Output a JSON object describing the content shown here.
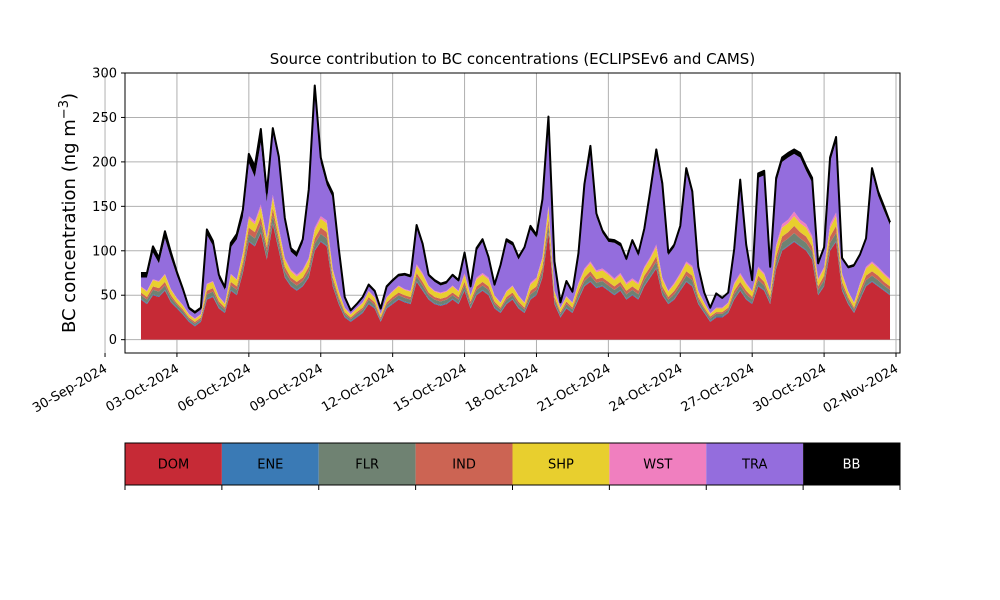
{
  "chart_data": {
    "type": "area",
    "title": "Source contribution to BC concentrations (ECLIPSEv6 and CAMS)",
    "ylabel": "BC concentration (ng m",
    "ylabel_sup": "−3",
    "ylabel_close": ")",
    "xlabel": "",
    "ylim": [
      -15,
      300
    ],
    "xlim": [
      "2024-09-30T20:00",
      "2024-11-02T04:00"
    ],
    "yticks": [
      0,
      50,
      100,
      150,
      200,
      250,
      300
    ],
    "xticks": [
      {
        "date": "2024-09-30",
        "label": "30-Sep-2024"
      },
      {
        "date": "2024-10-03",
        "label": "03-Oct-2024"
      },
      {
        "date": "2024-10-06",
        "label": "06-Oct-2024"
      },
      {
        "date": "2024-10-09",
        "label": "09-Oct-2024"
      },
      {
        "date": "2024-10-12",
        "label": "12-Oct-2024"
      },
      {
        "date": "2024-10-15",
        "label": "15-Oct-2024"
      },
      {
        "date": "2024-10-18",
        "label": "18-Oct-2024"
      },
      {
        "date": "2024-10-21",
        "label": "21-Oct-2024"
      },
      {
        "date": "2024-10-24",
        "label": "24-Oct-2024"
      },
      {
        "date": "2024-10-27",
        "label": "27-Oct-2024"
      },
      {
        "date": "2024-10-30",
        "label": "30-Oct-2024"
      },
      {
        "date": "2024-11-02",
        "label": "02-Nov-2024"
      }
    ],
    "grid": true,
    "stacked": true,
    "series_order": [
      "DOM",
      "ENE",
      "FLR",
      "IND",
      "SHP",
      "WST",
      "TRA",
      "BB"
    ],
    "colors": {
      "DOM": "#c62a36",
      "ENE": "#3a7ab5",
      "FLR": "#6f8272",
      "IND": "#cc6453",
      "SHP": "#e8cf2e",
      "WST": "#f07fbf",
      "TRA": "#946ddd",
      "BB": "#000000",
      "total_line": "#000000",
      "grid": "#b0b0b0"
    },
    "x": [
      "2024-10-01T12:00",
      "2024-10-01T18:00",
      "2024-10-02T00:00",
      "2024-10-02T06:00",
      "2024-10-02T12:00",
      "2024-10-02T18:00",
      "2024-10-03T00:00",
      "2024-10-03T06:00",
      "2024-10-03T12:00",
      "2024-10-03T18:00",
      "2024-10-04T00:00",
      "2024-10-04T06:00",
      "2024-10-04T12:00",
      "2024-10-04T18:00",
      "2024-10-05T00:00",
      "2024-10-05T06:00",
      "2024-10-05T12:00",
      "2024-10-05T18:00",
      "2024-10-06T00:00",
      "2024-10-06T06:00",
      "2024-10-06T12:00",
      "2024-10-06T18:00",
      "2024-10-07T00:00",
      "2024-10-07T06:00",
      "2024-10-07T12:00",
      "2024-10-07T18:00",
      "2024-10-08T00:00",
      "2024-10-08T06:00",
      "2024-10-08T12:00",
      "2024-10-08T18:00",
      "2024-10-09T00:00",
      "2024-10-09T06:00",
      "2024-10-09T12:00",
      "2024-10-09T18:00",
      "2024-10-10T00:00",
      "2024-10-10T06:00",
      "2024-10-10T12:00",
      "2024-10-10T18:00",
      "2024-10-11T00:00",
      "2024-10-11T06:00",
      "2024-10-11T12:00",
      "2024-10-11T18:00",
      "2024-10-12T00:00",
      "2024-10-12T06:00",
      "2024-10-12T12:00",
      "2024-10-12T18:00",
      "2024-10-13T00:00",
      "2024-10-13T06:00",
      "2024-10-13T12:00",
      "2024-10-13T18:00",
      "2024-10-14T00:00",
      "2024-10-14T06:00",
      "2024-10-14T12:00",
      "2024-10-14T18:00",
      "2024-10-15T00:00",
      "2024-10-15T06:00",
      "2024-10-15T12:00",
      "2024-10-15T18:00",
      "2024-10-16T00:00",
      "2024-10-16T06:00",
      "2024-10-16T12:00",
      "2024-10-16T18:00",
      "2024-10-17T00:00",
      "2024-10-17T06:00",
      "2024-10-17T12:00",
      "2024-10-17T18:00",
      "2024-10-18T00:00",
      "2024-10-18T06:00",
      "2024-10-18T12:00",
      "2024-10-18T18:00",
      "2024-10-19T00:00",
      "2024-10-19T06:00",
      "2024-10-19T12:00",
      "2024-10-19T18:00",
      "2024-10-20T00:00",
      "2024-10-20T06:00",
      "2024-10-20T12:00",
      "2024-10-20T18:00",
      "2024-10-21T00:00",
      "2024-10-21T06:00",
      "2024-10-21T12:00",
      "2024-10-21T18:00",
      "2024-10-22T00:00",
      "2024-10-22T06:00",
      "2024-10-22T12:00",
      "2024-10-22T18:00",
      "2024-10-23T00:00",
      "2024-10-23T06:00",
      "2024-10-23T12:00",
      "2024-10-23T18:00",
      "2024-10-24T00:00",
      "2024-10-24T06:00",
      "2024-10-24T12:00",
      "2024-10-24T18:00",
      "2024-10-25T00:00",
      "2024-10-25T06:00",
      "2024-10-25T12:00",
      "2024-10-25T18:00",
      "2024-10-26T00:00",
      "2024-10-26T06:00",
      "2024-10-26T12:00",
      "2024-10-26T18:00",
      "2024-10-27T00:00",
      "2024-10-27T06:00",
      "2024-10-27T12:00",
      "2024-10-27T18:00",
      "2024-10-28T00:00",
      "2024-10-28T06:00",
      "2024-10-28T12:00",
      "2024-10-28T18:00",
      "2024-10-29T00:00",
      "2024-10-29T06:00",
      "2024-10-29T12:00",
      "2024-10-29T18:00",
      "2024-10-30T00:00",
      "2024-10-30T06:00",
      "2024-10-30T12:00",
      "2024-10-30T18:00",
      "2024-10-31T00:00",
      "2024-10-31T06:00",
      "2024-10-31T12:00",
      "2024-10-31T18:00",
      "2024-11-01T00:00",
      "2024-11-01T06:00",
      "2024-11-01T12:00",
      "2024-11-01T18:00"
    ],
    "series": [
      {
        "name": "DOM",
        "values": [
          45,
          40,
          50,
          48,
          55,
          42,
          35,
          28,
          20,
          15,
          20,
          45,
          48,
          35,
          30,
          55,
          50,
          75,
          110,
          105,
          120,
          90,
          130,
          100,
          70,
          60,
          55,
          60,
          70,
          100,
          110,
          105,
          60,
          40,
          25,
          20,
          25,
          30,
          40,
          35,
          20,
          35,
          40,
          45,
          42,
          40,
          65,
          55,
          45,
          40,
          38,
          40,
          45,
          40,
          55,
          35,
          50,
          55,
          50,
          35,
          30,
          40,
          45,
          35,
          30,
          45,
          50,
          70,
          120,
          40,
          25,
          35,
          30,
          45,
          60,
          65,
          58,
          60,
          55,
          50,
          55,
          45,
          50,
          45,
          60,
          70,
          80,
          50,
          40,
          45,
          55,
          65,
          60,
          40,
          30,
          20,
          25,
          25,
          30,
          45,
          55,
          45,
          40,
          60,
          55,
          40,
          80,
          100,
          105,
          110,
          105,
          100,
          90,
          50,
          60,
          100,
          110,
          55,
          40,
          30,
          45,
          60,
          65,
          60,
          55,
          50
        ]
      },
      {
        "name": "ENE",
        "values": [
          1,
          1,
          1,
          1,
          1,
          1,
          1,
          1,
          1,
          1,
          1,
          1,
          1,
          1,
          1,
          1,
          1,
          1,
          1,
          1,
          1,
          1,
          1,
          1,
          1,
          1,
          1,
          1,
          1,
          1,
          1,
          1,
          1,
          1,
          1,
          1,
          1,
          1,
          1,
          1,
          1,
          1,
          1,
          1,
          1,
          1,
          1,
          1,
          1,
          1,
          1,
          1,
          1,
          1,
          1,
          1,
          1,
          1,
          1,
          1,
          1,
          1,
          1,
          1,
          1,
          1,
          1,
          1,
          1,
          1,
          1,
          1,
          1,
          1,
          1,
          1,
          1,
          1,
          1,
          1,
          1,
          1,
          1,
          1,
          1,
          1,
          1,
          1,
          1,
          1,
          1,
          1,
          1,
          1,
          1,
          1,
          1,
          1,
          1,
          1,
          1,
          1,
          1,
          1,
          1,
          1,
          1,
          1,
          1,
          1,
          1,
          1,
          1,
          1,
          1,
          1,
          1,
          1,
          1,
          1,
          1,
          1,
          1,
          1,
          1,
          1
        ]
      },
      {
        "name": "FLR",
        "values": [
          4,
          4,
          5,
          5,
          5,
          4,
          3,
          3,
          2,
          2,
          2,
          5,
          5,
          4,
          3,
          5,
          5,
          6,
          8,
          8,
          9,
          7,
          9,
          7,
          6,
          5,
          5,
          5,
          6,
          7,
          8,
          8,
          5,
          4,
          3,
          2,
          3,
          3,
          4,
          3,
          2,
          3,
          4,
          4,
          4,
          4,
          5,
          5,
          4,
          4,
          4,
          4,
          4,
          4,
          5,
          4,
          5,
          5,
          5,
          4,
          3,
          4,
          4,
          4,
          3,
          5,
          5,
          6,
          8,
          4,
          3,
          4,
          3,
          5,
          5,
          6,
          5,
          5,
          5,
          5,
          5,
          5,
          5,
          5,
          6,
          6,
          7,
          5,
          4,
          5,
          5,
          6,
          6,
          4,
          3,
          3,
          3,
          3,
          3,
          5,
          5,
          5,
          4,
          6,
          5,
          4,
          7,
          8,
          8,
          9,
          8,
          8,
          8,
          5,
          6,
          8,
          9,
          5,
          4,
          3,
          5,
          6,
          6,
          6,
          5,
          5
        ]
      },
      {
        "name": "IND",
        "values": [
          3,
          3,
          4,
          4,
          4,
          3,
          2,
          2,
          2,
          2,
          2,
          4,
          4,
          3,
          2,
          4,
          4,
          5,
          7,
          7,
          8,
          6,
          8,
          6,
          5,
          4,
          4,
          4,
          5,
          6,
          7,
          7,
          4,
          3,
          2,
          2,
          2,
          2,
          3,
          3,
          2,
          3,
          3,
          3,
          3,
          3,
          4,
          4,
          3,
          3,
          3,
          3,
          3,
          3,
          4,
          3,
          4,
          4,
          4,
          3,
          2,
          3,
          3,
          3,
          2,
          4,
          4,
          5,
          7,
          3,
          2,
          3,
          2,
          4,
          4,
          5,
          4,
          4,
          4,
          4,
          4,
          4,
          4,
          4,
          5,
          5,
          6,
          4,
          3,
          4,
          4,
          5,
          5,
          3,
          2,
          2,
          2,
          2,
          2,
          4,
          4,
          4,
          3,
          5,
          4,
          3,
          6,
          7,
          7,
          8,
          7,
          7,
          6,
          4,
          5,
          7,
          8,
          4,
          3,
          2,
          4,
          5,
          5,
          5,
          4,
          4
        ]
      },
      {
        "name": "SHP",
        "values": [
          6,
          6,
          7,
          7,
          8,
          6,
          5,
          4,
          3,
          3,
          3,
          7,
          7,
          5,
          4,
          8,
          7,
          9,
          10,
          9,
          11,
          9,
          12,
          9,
          8,
          7,
          6,
          7,
          8,
          9,
          10,
          10,
          8,
          6,
          4,
          3,
          4,
          5,
          6,
          5,
          3,
          5,
          6,
          7,
          6,
          6,
          8,
          8,
          7,
          6,
          6,
          6,
          7,
          6,
          8,
          6,
          8,
          8,
          8,
          6,
          5,
          6,
          7,
          6,
          5,
          7,
          8,
          9,
          12,
          6,
          4,
          5,
          5,
          7,
          8,
          9,
          8,
          8,
          8,
          7,
          8,
          7,
          7,
          7,
          8,
          9,
          10,
          8,
          6,
          7,
          8,
          9,
          9,
          6,
          5,
          3,
          4,
          4,
          5,
          7,
          8,
          7,
          6,
          8,
          8,
          6,
          10,
          10,
          10,
          11,
          10,
          10,
          9,
          7,
          8,
          10,
          11,
          8,
          6,
          5,
          7,
          8,
          9,
          8,
          8,
          7
        ]
      },
      {
        "name": "WST",
        "values": [
          1,
          1,
          1,
          1,
          1,
          1,
          1,
          1,
          1,
          1,
          1,
          1,
          1,
          1,
          1,
          1,
          1,
          2,
          3,
          3,
          3,
          2,
          3,
          3,
          2,
          2,
          2,
          2,
          2,
          3,
          3,
          3,
          2,
          1,
          1,
          1,
          1,
          1,
          1,
          1,
          1,
          1,
          1,
          1,
          1,
          1,
          2,
          2,
          1,
          1,
          1,
          1,
          1,
          1,
          2,
          1,
          2,
          2,
          2,
          1,
          1,
          1,
          1,
          1,
          1,
          2,
          2,
          2,
          3,
          1,
          1,
          1,
          1,
          2,
          2,
          2,
          2,
          2,
          2,
          2,
          2,
          2,
          2,
          2,
          2,
          2,
          3,
          2,
          1,
          2,
          2,
          2,
          2,
          1,
          1,
          1,
          1,
          1,
          1,
          2,
          2,
          2,
          1,
          2,
          2,
          1,
          3,
          4,
          4,
          5,
          4,
          4,
          3,
          2,
          2,
          4,
          4,
          2,
          1,
          1,
          2,
          2,
          2,
          2,
          2,
          2
        ]
      },
      {
        "name": "TRA",
        "values": [
          10,
          15,
          30,
          20,
          40,
          35,
          25,
          15,
          5,
          5,
          5,
          55,
          40,
          20,
          15,
          30,
          45,
          40,
          60,
          50,
          70,
          40,
          70,
          75,
          40,
          20,
          20,
          30,
          70,
          150,
          60,
          40,
          80,
          45,
          10,
          3,
          3,
          5,
          5,
          5,
          5,
          10,
          10,
          10,
          15,
          15,
          40,
          30,
          10,
          10,
          8,
          8,
          10,
          10,
          20,
          8,
          30,
          35,
          20,
          10,
          40,
          55,
          45,
          40,
          60,
          60,
          45,
          60,
          90,
          30,
          5,
          15,
          10,
          30,
          90,
          120,
          60,
          40,
          35,
          40,
          30,
          25,
          40,
          30,
          40,
          70,
          100,
          100,
          40,
          40,
          50,
          100,
          80,
          25,
          10,
          5,
          15,
          10,
          10,
          35,
          100,
          40,
          10,
          100,
          110,
          25,
          70,
          70,
          70,
          65,
          70,
          60,
          60,
          15,
          20,
          70,
          80,
          15,
          25,
          40,
          30,
          30,
          100,
          80,
          70,
          60
        ]
      },
      {
        "name": "BB",
        "values": [
          5,
          5,
          7,
          6,
          8,
          6,
          4,
          3,
          2,
          2,
          2,
          6,
          5,
          4,
          3,
          5,
          6,
          8,
          10,
          12,
          15,
          10,
          5,
          5,
          5,
          4,
          4,
          4,
          7,
          10,
          6,
          5,
          5,
          3,
          2,
          1,
          1,
          1,
          2,
          2,
          1,
          2,
          2,
          2,
          2,
          2,
          4,
          3,
          2,
          2,
          2,
          2,
          2,
          2,
          3,
          2,
          3,
          3,
          3,
          2,
          2,
          3,
          3,
          3,
          2,
          4,
          3,
          5,
          10,
          3,
          1,
          2,
          2,
          3,
          5,
          10,
          4,
          3,
          3,
          3,
          3,
          2,
          3,
          3,
          3,
          5,
          7,
          6,
          3,
          3,
          3,
          5,
          4,
          2,
          1,
          1,
          1,
          1,
          1,
          3,
          5,
          3,
          2,
          5,
          5,
          2,
          5,
          5,
          5,
          5,
          5,
          5,
          5,
          2,
          2,
          5,
          5,
          2,
          2,
          2,
          2,
          2,
          5,
          5,
          5,
          3
        ]
      }
    ],
    "legend": {
      "placement": "bottom",
      "items": [
        {
          "name": "DOM",
          "text_color": "#000000"
        },
        {
          "name": "ENE",
          "text_color": "#000000"
        },
        {
          "name": "FLR",
          "text_color": "#000000"
        },
        {
          "name": "IND",
          "text_color": "#000000"
        },
        {
          "name": "SHP",
          "text_color": "#000000"
        },
        {
          "name": "WST",
          "text_color": "#000000"
        },
        {
          "name": "TRA",
          "text_color": "#000000"
        },
        {
          "name": "BB",
          "text_color": "#ffffff"
        }
      ]
    }
  }
}
